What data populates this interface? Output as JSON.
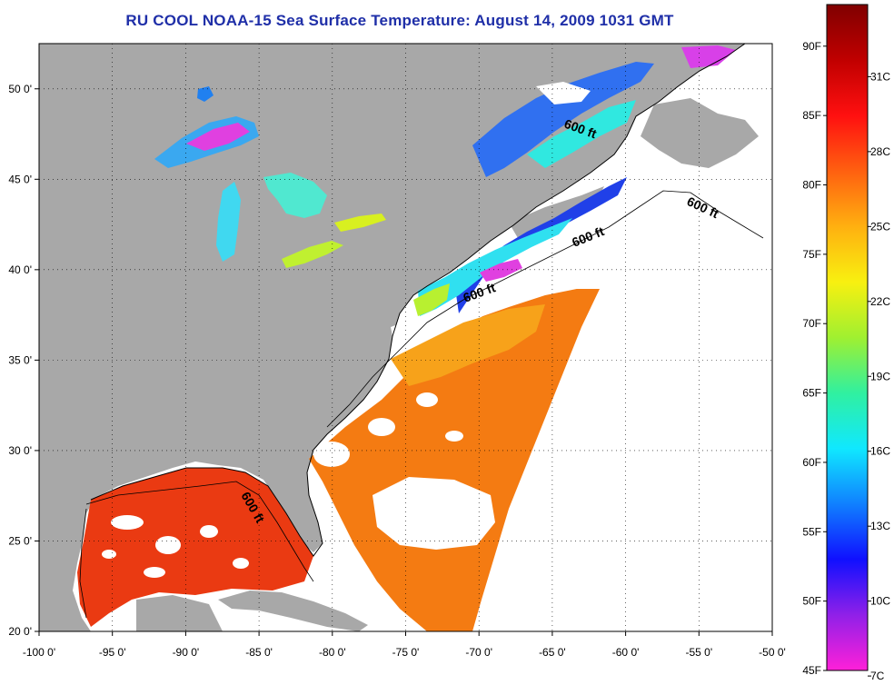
{
  "title": "RU COOL  NOAA-15  Sea Surface Temperature:  August 14, 2009 1031 GMT",
  "map": {
    "lon_range": [
      -100,
      -50
    ],
    "lat_range": [
      20,
      52.5
    ],
    "x_ticks": [
      {
        "lon": -100,
        "label": "-100 0'"
      },
      {
        "lon": -95,
        "label": "-95 0'"
      },
      {
        "lon": -90,
        "label": "-90 0'"
      },
      {
        "lon": -85,
        "label": "-85 0'"
      },
      {
        "lon": -80,
        "label": "-80 0'"
      },
      {
        "lon": -75,
        "label": "-75 0'"
      },
      {
        "lon": -70,
        "label": "-70 0'"
      },
      {
        "lon": -65,
        "label": "-65 0'"
      },
      {
        "lon": -60,
        "label": "-60 0'"
      },
      {
        "lon": -55,
        "label": "-55 0'"
      },
      {
        "lon": -50,
        "label": "-50 0'"
      }
    ],
    "y_ticks": [
      {
        "lat": 20,
        "label": "20 0'"
      },
      {
        "lat": 25,
        "label": "25 0'"
      },
      {
        "lat": 30,
        "label": "30 0'"
      },
      {
        "lat": 35,
        "label": "35 0'"
      },
      {
        "lat": 40,
        "label": "40 0'"
      },
      {
        "lat": 45,
        "label": "45 0'"
      },
      {
        "lat": 50,
        "label": "50 0'"
      }
    ],
    "grid": true,
    "contour_labels": [
      {
        "text": "600 ft"
      },
      {
        "text": "600 ft"
      },
      {
        "text": "600 ft"
      },
      {
        "text": "600 ft"
      },
      {
        "text": "600 ft"
      }
    ],
    "colors": {
      "land": "#a8a8a8",
      "cloud": "#ffffff",
      "gulf": "#ea3a12",
      "gulf_stream": "#f47b12",
      "shelf_mid": "#f7a21a",
      "cold": "#2040e8"
    }
  },
  "colorbar": {
    "fahrenheit": [
      {
        "value": 45,
        "label": "45F"
      },
      {
        "value": 50,
        "label": "50F"
      },
      {
        "value": 55,
        "label": "55F"
      },
      {
        "value": 60,
        "label": "60F"
      },
      {
        "value": 65,
        "label": "65F"
      },
      {
        "value": 70,
        "label": "70F"
      },
      {
        "value": 75,
        "label": "75F"
      },
      {
        "value": 80,
        "label": "80F"
      },
      {
        "value": 85,
        "label": "85F"
      },
      {
        "value": 90,
        "label": "90F"
      }
    ],
    "celsius": [
      {
        "value": 7,
        "label": "7C"
      },
      {
        "value": 10,
        "label": "10C"
      },
      {
        "value": 13,
        "label": "13C"
      },
      {
        "value": 16,
        "label": "16C"
      },
      {
        "value": 19,
        "label": "19C"
      },
      {
        "value": 22,
        "label": "22C"
      },
      {
        "value": 25,
        "label": "25C"
      },
      {
        "value": 28,
        "label": "28C"
      },
      {
        "value": 31,
        "label": "31C"
      }
    ],
    "range_f": [
      45,
      93
    ],
    "stops": [
      "#ff20d8",
      "#9020e8",
      "#1010ff",
      "#1080ff",
      "#10e8ff",
      "#30f0a0",
      "#a0f030",
      "#f8f010",
      "#ffb010",
      "#ff6010",
      "#ff1010",
      "#c00000",
      "#800000"
    ]
  }
}
